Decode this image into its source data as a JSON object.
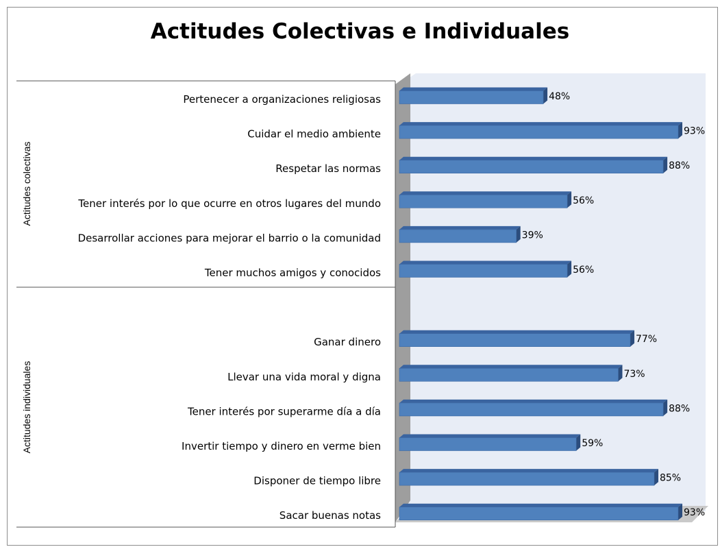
{
  "chart_data": {
    "type": "bar",
    "orientation": "horizontal",
    "title": "Actitudes Colectivas e Individuales",
    "groups": [
      {
        "name": "Actitudes colectivas",
        "categories": [
          "Pertenecer a organizaciones religiosas",
          "Cuidar el medio ambiente",
          "Respetar las normas",
          "Tener interés por lo que ocurre en otros lugares del mundo",
          "Desarrollar acciones para mejorar el barrio o la comunidad",
          "Tener muchos amigos y conocidos"
        ],
        "values": [
          48,
          93,
          88,
          56,
          39,
          56
        ],
        "labels": [
          "48%",
          "93%",
          "88%",
          "56%",
          "39%",
          "56%"
        ]
      },
      {
        "name": "Actitudes individuales",
        "categories": [
          "Ganar dinero",
          "Llevar una vida moral y digna",
          "Tener interés por superarme día a día",
          "Invertir tiempo y dinero en verme bien",
          "Disponer de tiempo libre",
          "Sacar buenas notas"
        ],
        "values": [
          77,
          73,
          88,
          59,
          85,
          93
        ],
        "labels": [
          "77%",
          "73%",
          "88%",
          "59%",
          "85%",
          "93%"
        ]
      }
    ],
    "xlim": [
      0,
      100
    ],
    "grid": false,
    "legend": "none",
    "colors": {
      "bar_front": "#4f81bd",
      "bar_top": "#3a64a0",
      "bar_side": "#2c4d7d",
      "plot_area": "#e8edf6",
      "wall": "#9e9e9e",
      "floor": "#c9c9c9"
    }
  }
}
